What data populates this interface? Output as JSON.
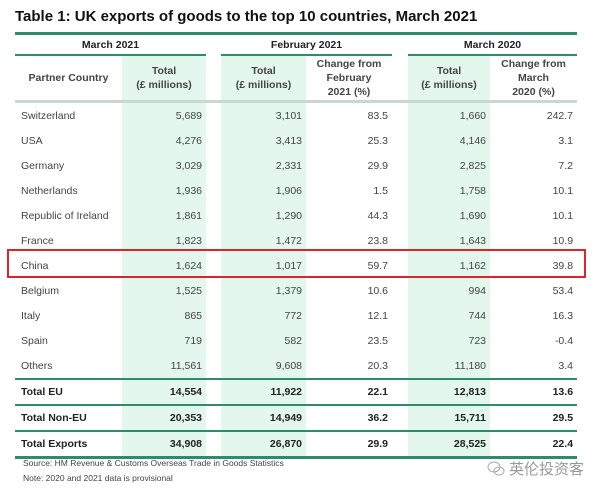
{
  "title": "Table 1: UK exports of goods to the top 10 countries, March 2021",
  "groups": [
    "March 2021",
    "February 2021",
    "March 2020"
  ],
  "headers": [
    "Partner Country",
    "Total\n(£ millions)",
    "Total\n(£ millions)",
    "Change from\nFebruary\n2021 (%)",
    "Total\n(£ millions)",
    "Change from\nMarch\n2020 (%)"
  ],
  "rows": [
    [
      "Switzerland",
      "5,689",
      "3,101",
      "83.5",
      "1,660",
      "242.7"
    ],
    [
      "USA",
      "4,276",
      "3,413",
      "25.3",
      "4,146",
      "3.1"
    ],
    [
      "Germany",
      "3,029",
      "2,331",
      "29.9",
      "2,825",
      "7.2"
    ],
    [
      "Netherlands",
      "1,936",
      "1,906",
      "1.5",
      "1,758",
      "10.1"
    ],
    [
      "Republic of Ireland",
      "1,861",
      "1,290",
      "44.3",
      "1,690",
      "10.1"
    ],
    [
      "France",
      "1,823",
      "1,472",
      "23.8",
      "1,643",
      "10.9"
    ],
    [
      "China",
      "1,624",
      "1,017",
      "59.7",
      "1,162",
      "39.8"
    ],
    [
      "Belgium",
      "1,525",
      "1,379",
      "10.6",
      "994",
      "53.4"
    ],
    [
      "Italy",
      "865",
      "772",
      "12.1",
      "744",
      "16.3"
    ],
    [
      "Spain",
      "719",
      "582",
      "23.5",
      "723",
      "-0.4"
    ],
    [
      "Others",
      "11,561",
      "9,608",
      "20.3",
      "11,180",
      "3.4"
    ]
  ],
  "totals": [
    [
      "Total EU",
      "14,554",
      "11,922",
      "22.1",
      "12,813",
      "13.6"
    ],
    [
      "Total Non-EU",
      "20,353",
      "14,949",
      "36.2",
      "15,711",
      "29.5"
    ],
    [
      "Total Exports",
      "34,908",
      "26,870",
      "29.9",
      "28,525",
      "22.4"
    ]
  ],
  "source": "Source: HM Revenue & Customs Overseas Trade in Goods Statistics",
  "note": "Note: 2020 and 2021 data is provisional",
  "highlighted_row": "China",
  "highlight_color": "#d9262b",
  "accent_color": "#2e8b6e",
  "watermark": "英伦投资客"
}
